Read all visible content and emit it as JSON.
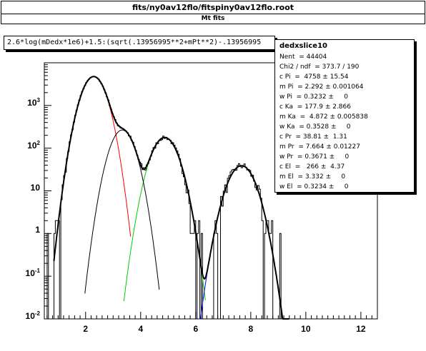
{
  "header": {
    "title": "fits/ny0av12flo/fitspiny0av12flo.root",
    "subtitle": "Mt fits"
  },
  "expression": "2.6*log(mDedx*1e6)+1.5:(sqrt(.13956995**2+mPt**2)-.13956995",
  "stats": {
    "title": "dedxslice10",
    "rows": [
      {
        "label": "Nent",
        "value": "= 44404"
      },
      {
        "label": "Chi2 / ndf",
        "value": "= 373.7 / 190"
      },
      {
        "label": "c Pi",
        "value": "=  4758 ± 15.54"
      },
      {
        "label": "m Pi",
        "value": "= 2.292 ± 0.001064"
      },
      {
        "label": "w Pi",
        "value": "= 0.3232 ±     0"
      },
      {
        "label": "c Ka",
        "value": "= 177.9 ± 2.866"
      },
      {
        "label": "m Ka",
        "value": "=  4.872 ± 0.005838"
      },
      {
        "label": "w Ka",
        "value": "= 0.3528 ±     0"
      },
      {
        "label": "c Pr",
        "value": "= 38.81 ±  1.31"
      },
      {
        "label": "m Pr",
        "value": "= 7.664 ± 0.01227"
      },
      {
        "label": "w Pr",
        "value": "= 0.3671 ±     0"
      },
      {
        "label": "c El",
        "value": "=   266 ±  4.37"
      },
      {
        "label": "m El",
        "value": "= 3.332 ±     0"
      },
      {
        "label": "w El",
        "value": "= 0.3234 ±     0"
      }
    ]
  },
  "chart_data": {
    "type": "line",
    "xlim": [
      0.5,
      12.6
    ],
    "ylim": [
      0.01,
      10000
    ],
    "yscale": "log",
    "x_ticks": [
      "2",
      "4",
      "6",
      "8",
      "10",
      "12"
    ],
    "x_tick_values": [
      2,
      4,
      6,
      8,
      10,
      12
    ],
    "y_ticks": [
      {
        "base": "10",
        "exp": "3",
        "value": 1000
      },
      {
        "base": "10",
        "exp": "2",
        "value": 100
      },
      {
        "base": "10",
        "exp": "",
        "value": 10
      },
      {
        "base": "1",
        "exp": "",
        "value": 1
      },
      {
        "base": "10",
        "exp": "-1",
        "value": 0.1
      },
      {
        "base": "10",
        "exp": "-2",
        "value": 0.01
      }
    ],
    "components": [
      {
        "name": "Pi",
        "amplitude": 4758,
        "mean": 2.292,
        "width": 0.3232,
        "color": "#ff0000"
      },
      {
        "name": "Ka",
        "amplitude": 177.9,
        "mean": 4.872,
        "width": 0.3528,
        "color": "#00cc00"
      },
      {
        "name": "Pr",
        "amplitude": 38.81,
        "mean": 7.664,
        "width": 0.3671,
        "color": "#0000ff"
      },
      {
        "name": "El",
        "amplitude": 266,
        "mean": 3.332,
        "width": 0.3234,
        "color": "#000000"
      }
    ],
    "grid": false,
    "legend": "top-right"
  }
}
